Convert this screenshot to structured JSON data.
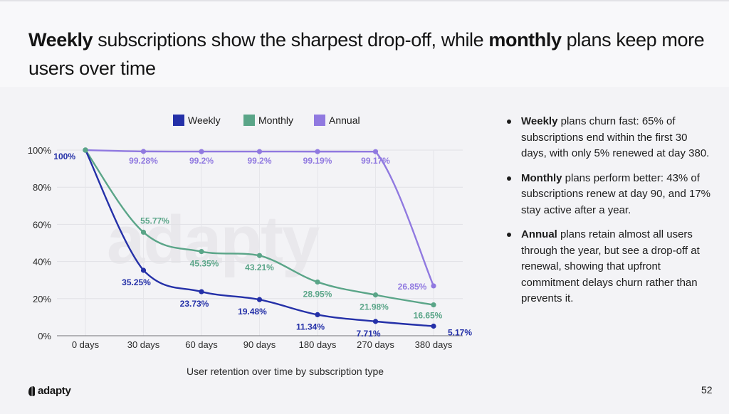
{
  "title": {
    "bold1": "Weekly",
    "text1": " subscriptions show the sharpest drop-off, while ",
    "bold2": "monthly",
    "text2": " plans keep more users over time"
  },
  "chart_data": {
    "type": "line",
    "title": "",
    "xlabel": "User retention over time by subscription type",
    "ylabel": "",
    "categories": [
      "0 days",
      "30 days",
      "60 days",
      "90 days",
      "180 days",
      "270 days",
      "380 days"
    ],
    "ylim": [
      0,
      100
    ],
    "yticks": [
      0,
      20,
      40,
      60,
      80,
      100
    ],
    "ytick_labels": [
      "0%",
      "20%",
      "40%",
      "60%",
      "80%",
      "100%"
    ],
    "grid": true,
    "legend_position": "top",
    "series": [
      {
        "name": "Weekly",
        "color": "#2430a8",
        "values": [
          100,
          35.25,
          23.73,
          19.48,
          11.34,
          7.71,
          5.17
        ],
        "labels": [
          "100%",
          "35.25%",
          "23.73%",
          "19.48%",
          "11.34%",
          "7.71%",
          "5.17%"
        ]
      },
      {
        "name": "Monthly",
        "color": "#5aa588",
        "values": [
          100,
          55.77,
          45.35,
          43.21,
          28.95,
          21.98,
          16.65
        ],
        "labels": [
          "",
          "55.77%",
          "45.35%",
          "43.21%",
          "28.95%",
          "21.98%",
          "16.65%"
        ]
      },
      {
        "name": "Annual",
        "color": "#9079e0",
        "values": [
          100,
          99.28,
          99.2,
          99.2,
          99.19,
          99.17,
          26.85
        ],
        "labels": [
          "",
          "99.28%",
          "99.2%",
          "99.2%",
          "99.19%",
          "99.17%",
          "26.85%"
        ]
      }
    ]
  },
  "watermark": "adapty",
  "bullets": [
    {
      "bold": "Weekly",
      "text": " plans churn fast: 65% of subscriptions end within the first 30 days, with only 5% renewed at day 380."
    },
    {
      "bold": "Monthly",
      "text": " plans perform better: 43% of subscriptions renew at day 90, and 17% stay active after a year."
    },
    {
      "bold": "Annual",
      "text": " plans retain almost all users through the year, but see a drop-off at renewal, showing that upfront commitment delays churn rather than prevents it."
    }
  ],
  "footer": {
    "logo_text": "adapty",
    "page_number": "52"
  }
}
